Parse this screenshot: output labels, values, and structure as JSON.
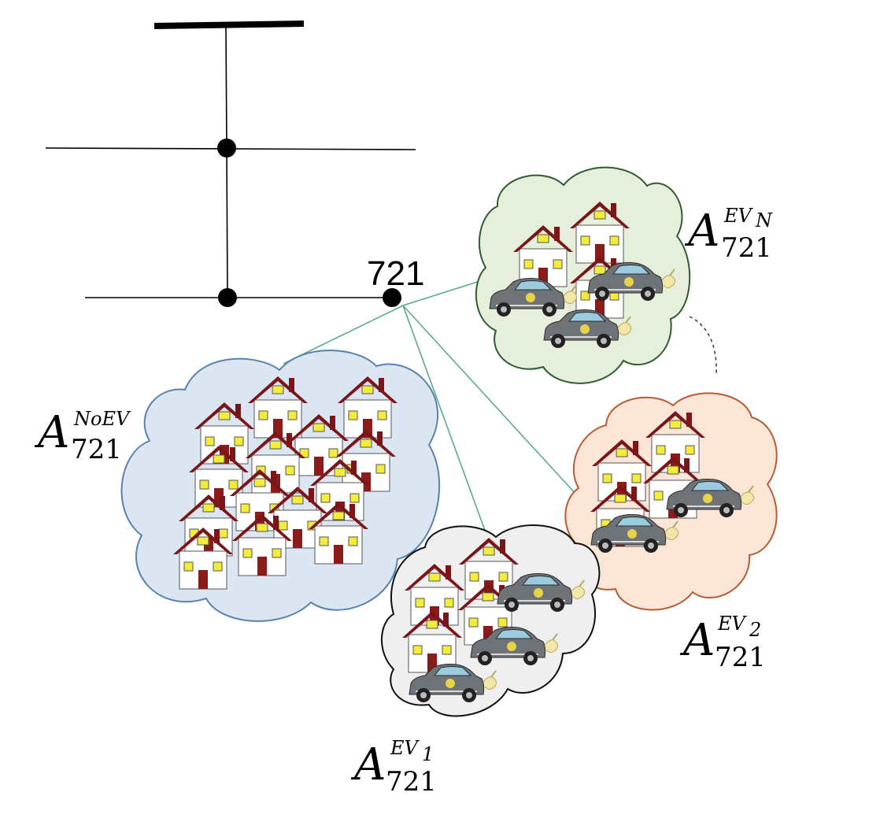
{
  "colors": {
    "line": "#000000",
    "feeder": "#5aaa8c",
    "roof": "#7a1518",
    "door": "#8b1a1a",
    "window": "#f4ec3a",
    "house_wall": "#ffffff",
    "car_body": "#6e7378",
    "car_window": "#9ccbe0",
    "plug": "#f2e6a8"
  },
  "bus": {
    "label": "721"
  },
  "clusters": [
    {
      "id": "noev",
      "fill": "#dbe6f2",
      "stroke": "#5a82b0",
      "label": {
        "base": "A",
        "sub": "721",
        "sup": "NoEV",
        "sup_index": ""
      }
    },
    {
      "id": "evn",
      "fill": "#e5efdc",
      "stroke": "#2f5d2f",
      "label": {
        "base": "A",
        "sub": "721",
        "sup": "EV",
        "sup_index": "N"
      }
    },
    {
      "id": "ev2",
      "fill": "#fbe5d6",
      "stroke": "#b85c33",
      "label": {
        "base": "A",
        "sub": "721",
        "sup": "EV",
        "sup_index": "2"
      }
    },
    {
      "id": "ev1",
      "fill": "#efefef",
      "stroke": "#111111",
      "label": {
        "base": "A",
        "sub": "721",
        "sup": "EV",
        "sup_index": "1"
      }
    }
  ]
}
